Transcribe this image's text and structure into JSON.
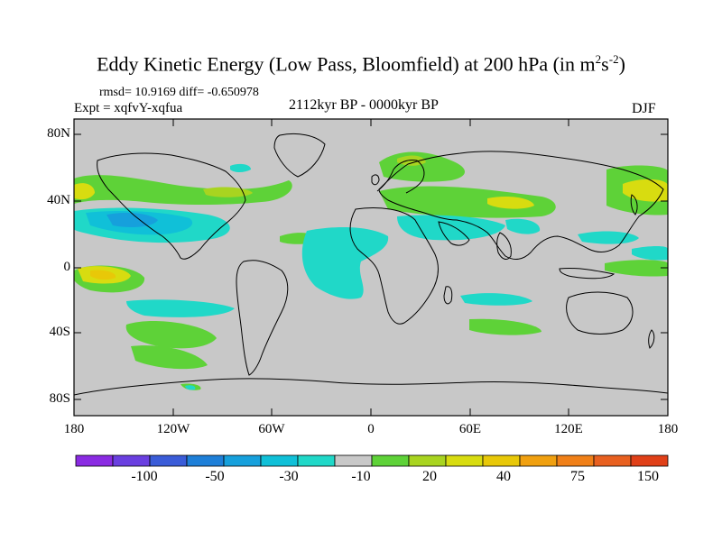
{
  "title": {
    "main": "Eddy Kinetic Energy (Low Pass, Bloomfield) at 200 hPa (in m",
    "sup1": "2",
    "mid": "s",
    "sup2": "-2",
    "end": ")"
  },
  "stats": "rmsd= 10.9169 diff= -0.650978",
  "experiment": "Expt = xqfvY-xqfua",
  "period": "2112kyr BP - 0000kyr BP",
  "season": "DJF",
  "lat_labels": [
    "80N",
    "40N",
    "0",
    "40S",
    "80S"
  ],
  "lon_labels": [
    "180",
    "120W",
    "60W",
    "0",
    "60E",
    "120E",
    "180"
  ],
  "colorbar": {
    "colors": [
      "#8a2be2",
      "#6a3fe0",
      "#3a5cd8",
      "#1e7fd8",
      "#16a0dc",
      "#10c0d8",
      "#20d8c8",
      "#c8c8c8",
      "#5ed238",
      "#a8d420",
      "#d8dc10",
      "#e8c808",
      "#f0a010",
      "#f08018",
      "#e86020",
      "#e04018"
    ],
    "labels": [
      "-100",
      "-50",
      "-30",
      "-10",
      "20",
      "40",
      "75",
      "150"
    ]
  },
  "palette": {
    "background": "#c8c8c8",
    "teal": "#20d8c8",
    "cyan": "#10c0d8",
    "blue": "#16a0dc",
    "green": "#5ed238",
    "lime": "#a8d420",
    "yellow": "#d8dc10",
    "orange": "#e8c808"
  }
}
